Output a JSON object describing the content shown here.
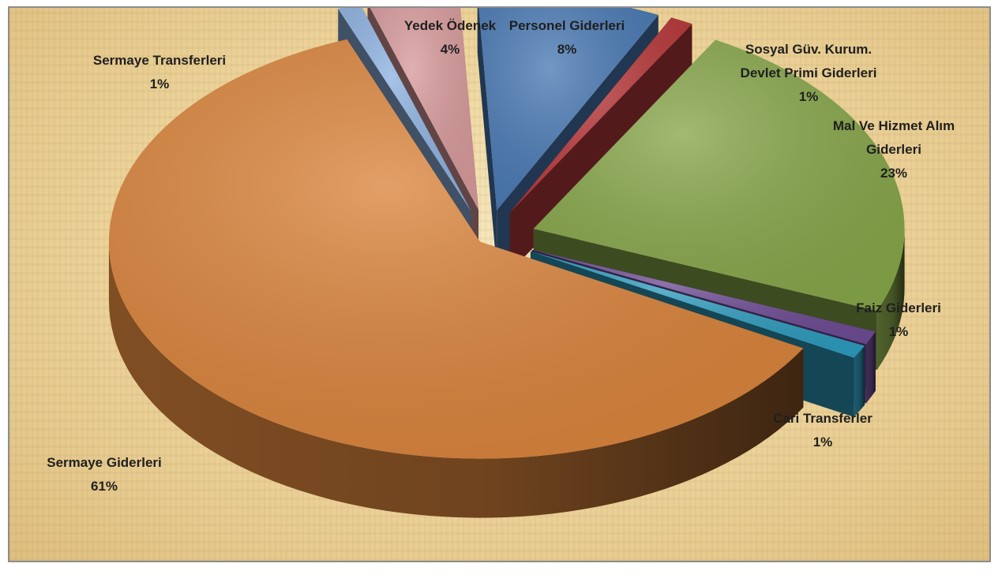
{
  "chart_data": {
    "type": "pie",
    "title": "",
    "variant": "3d-exploded",
    "slices": [
      {
        "label": "Personel Giderleri",
        "percent_label": "8%",
        "value": 8,
        "color": "#4a7ab4"
      },
      {
        "label": "Sosyal Güv. Kurum. Devlet Primi Giderleri",
        "label_lines": [
          "Sosyal Güv. Kurum.",
          "Devlet Primi Giderleri"
        ],
        "percent_label": "1%",
        "value": 1,
        "color": "#b8393b"
      },
      {
        "label": "Mal Ve Hizmet Alım Giderleri",
        "label_lines": [
          "Mal Ve Hizmet Alım",
          "Giderleri"
        ],
        "percent_label": "23%",
        "value": 23,
        "color": "#87a64a"
      },
      {
        "label": "Faiz Giderleri",
        "percent_label": "1%",
        "value": 1,
        "color": "#6e4c94"
      },
      {
        "label": "Cari Transferler",
        "percent_label": "1%",
        "value": 1,
        "color": "#2f9bbd"
      },
      {
        "label": "Sermaye Giderleri",
        "percent_label": "61%",
        "value": 61,
        "color": "#da843c"
      },
      {
        "label": "Sermaye Transferleri",
        "percent_label": "1%",
        "value": 1,
        "color": "#8eb2e0"
      },
      {
        "label": "Yedek Ödenek",
        "percent_label": "4%",
        "value": 4,
        "color": "#d89a9b"
      }
    ]
  }
}
